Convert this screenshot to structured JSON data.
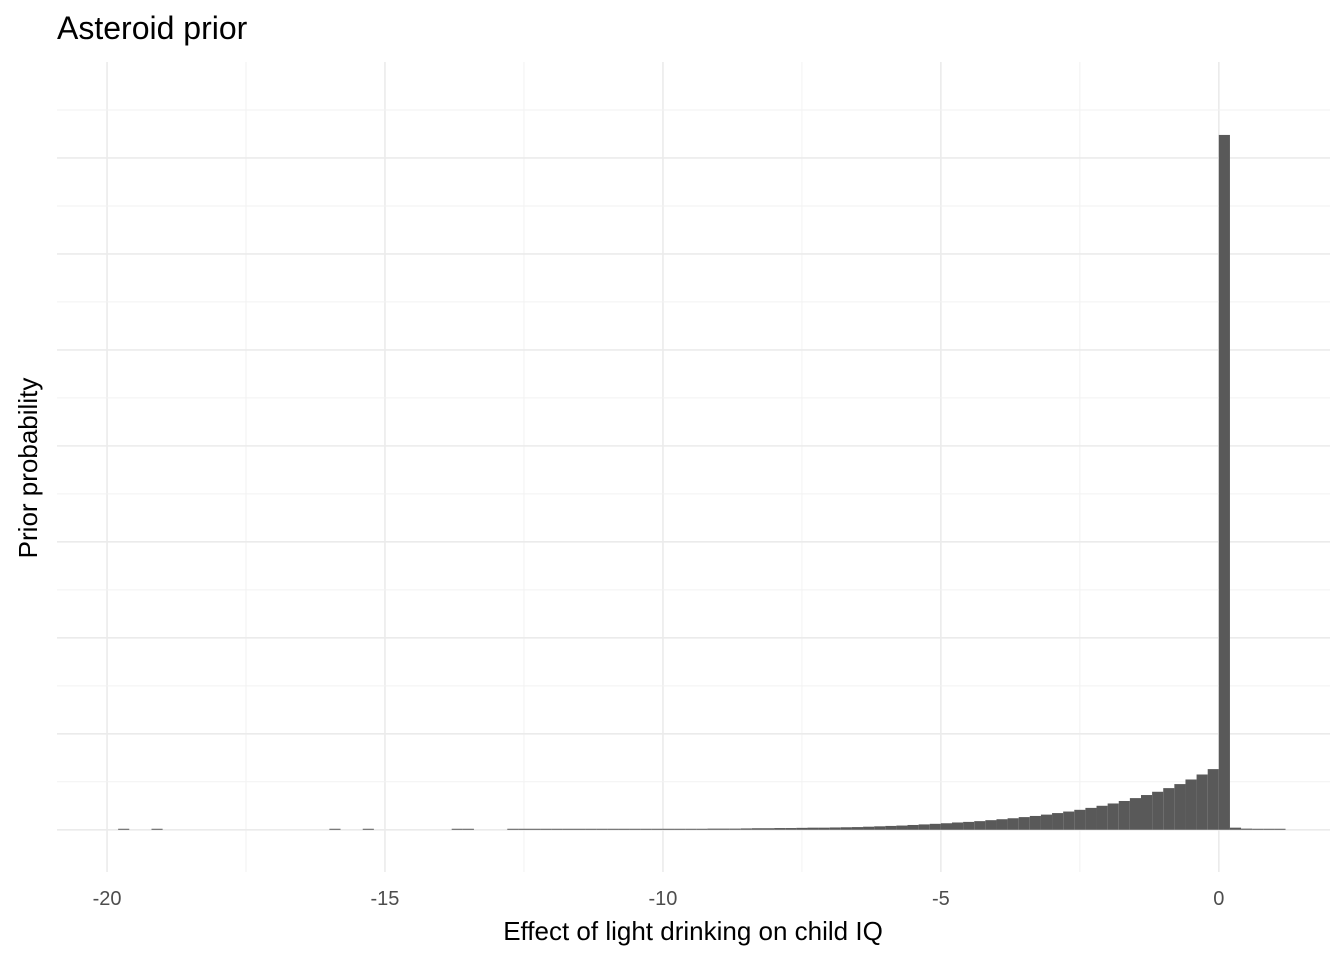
{
  "chart_data": {
    "type": "bar",
    "title": "Asteroid prior",
    "xlabel": "Effect of light drinking on child IQ",
    "ylabel": "Prior probability",
    "xlim": [
      -20.9,
      2.0
    ],
    "ylim": [
      -0.022,
      0.4
    ],
    "x_ticks": [
      -20,
      -15,
      -10,
      -5,
      0
    ],
    "x_tick_labels": [
      "-20",
      "-15",
      "-10",
      "-5",
      "0"
    ],
    "bin_width": 0.2,
    "bin_starts": [
      -19.8,
      -19.2,
      -16.0,
      -15.4,
      -13.8,
      -13.6,
      -12.8,
      -12.6,
      -12.4,
      -12.2,
      -12.0,
      -11.8,
      -11.6,
      -11.4,
      -11.2,
      -11.0,
      -10.8,
      -10.6,
      -10.4,
      -10.2,
      -10.0,
      -9.8,
      -9.6,
      -9.4,
      -9.2,
      -9.0,
      -8.8,
      -8.6,
      -8.4,
      -8.2,
      -8.0,
      -7.8,
      -7.6,
      -7.4,
      -7.2,
      -7.0,
      -6.8,
      -6.6,
      -6.4,
      -6.2,
      -6.0,
      -5.8,
      -5.6,
      -5.4,
      -5.2,
      -5.0,
      -4.8,
      -4.6,
      -4.4,
      -4.2,
      -4.0,
      -3.8,
      -3.6,
      -3.4,
      -3.2,
      -3.0,
      -2.8,
      -2.6,
      -2.4,
      -2.2,
      -2.0,
      -1.8,
      -1.6,
      -1.4,
      -1.2,
      -1.0,
      -0.8,
      -0.6,
      -0.4,
      -0.2,
      0.0,
      0.2,
      0.4,
      0.6,
      0.8,
      1.0
    ],
    "values": [
      0.0002,
      0.0002,
      0.0002,
      0.0002,
      0.0002,
      0.0002,
      0.0002,
      0.0002,
      0.0002,
      0.0003,
      0.0003,
      0.0003,
      0.0003,
      0.0003,
      0.0003,
      0.0003,
      0.0004,
      0.0004,
      0.0004,
      0.0004,
      0.0004,
      0.0005,
      0.0005,
      0.0005,
      0.0006,
      0.0006,
      0.0006,
      0.0007,
      0.0008,
      0.0008,
      0.0009,
      0.0009,
      0.001,
      0.0011,
      0.0011,
      0.0012,
      0.0013,
      0.0014,
      0.0016,
      0.0018,
      0.002,
      0.0022,
      0.0025,
      0.0028,
      0.0031,
      0.0034,
      0.0038,
      0.0041,
      0.0045,
      0.005,
      0.0055,
      0.006,
      0.0066,
      0.0072,
      0.0079,
      0.0087,
      0.0095,
      0.0104,
      0.0114,
      0.0125,
      0.0137,
      0.015,
      0.0165,
      0.0181,
      0.0198,
      0.0217,
      0.0238,
      0.0262,
      0.0288,
      0.0316,
      0.362,
      0.0011,
      0.0006,
      0.0005,
      0.0004,
      0.0004
    ],
    "bar_color": "#595959",
    "grid": true,
    "y_tick_labels_shown": false
  }
}
